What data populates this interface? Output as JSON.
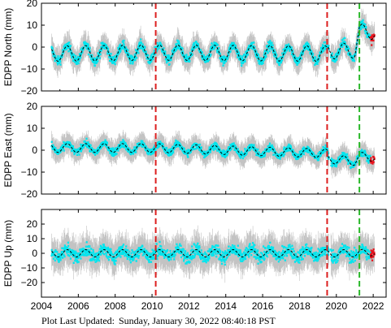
{
  "footer": {
    "updated_label": "Plot Last Updated:",
    "updated_value": "Sunday, January 30, 2022 08:40:18 PST"
  },
  "colors": {
    "uncertainty": "#b4b4b4",
    "data": "#00e5ee",
    "recent_data": "#e8141e",
    "model": "#000000",
    "offset_line": "#dc1e1e",
    "antenna_line": "#2ab82a"
  },
  "chart_data": [
    {
      "type": "scatter",
      "title": "",
      "ylabel": "EDPP North (mm)",
      "xlabel": "",
      "xlim": [
        2004,
        2022.7
      ],
      "ylim": [
        -20,
        20
      ],
      "yticks": [
        -20,
        -10,
        0,
        10,
        20
      ],
      "xticks": [
        2004,
        2006,
        2008,
        2010,
        2012,
        2014,
        2016,
        2018,
        2020,
        2022
      ],
      "show_xtick_labels": false,
      "grid": false,
      "series": [
        {
          "amplitude": 3.5,
          "trend": [
            [
              2004.5,
              -3
            ],
            [
              2010.2,
              -2.5
            ],
            [
              2019.5,
              -3
            ],
            [
              2019.55,
              -2
            ],
            [
              2021.0,
              -1.5
            ],
            [
              2021.25,
              7
            ],
            [
              2022.1,
              7
            ]
          ],
          "scatter": 3.2,
          "errbar": 4.5
        }
      ],
      "vlines": [
        {
          "x": 2010.2,
          "kind": "offset"
        },
        {
          "x": 2019.5,
          "kind": "offset"
        },
        {
          "x": 2021.25,
          "kind": "antenna"
        }
      ]
    },
    {
      "type": "scatter",
      "title": "",
      "ylabel": "EDPP East (mm)",
      "xlabel": "",
      "xlim": [
        2004,
        2022.7
      ],
      "ylim": [
        -20,
        20
      ],
      "yticks": [
        -20,
        -10,
        0,
        10,
        20
      ],
      "xticks": [
        2004,
        2006,
        2008,
        2010,
        2012,
        2014,
        2016,
        2018,
        2020,
        2022
      ],
      "show_xtick_labels": false,
      "grid": false,
      "series": [
        {
          "amplitude": 2.0,
          "trend": [
            [
              2004.5,
              1
            ],
            [
              2010.2,
              1
            ],
            [
              2019.5,
              -1.5
            ],
            [
              2019.55,
              -4
            ],
            [
              2021.0,
              -5
            ],
            [
              2021.25,
              -3
            ],
            [
              2022.1,
              -3
            ]
          ],
          "scatter": 2.5,
          "errbar": 4.0
        }
      ],
      "vlines": [
        {
          "x": 2010.2,
          "kind": "offset"
        },
        {
          "x": 2019.5,
          "kind": "offset"
        },
        {
          "x": 2021.25,
          "kind": "antenna"
        }
      ]
    },
    {
      "type": "scatter",
      "title": "",
      "ylabel": "EDPP Up (mm)",
      "xlabel": "",
      "xlim": [
        2004,
        2022.7
      ],
      "ylim": [
        -30,
        30
      ],
      "yticks": [
        -20,
        -10,
        0,
        10,
        20
      ],
      "xticks": [
        2004,
        2006,
        2008,
        2010,
        2012,
        2014,
        2016,
        2018,
        2020,
        2022
      ],
      "xtick_labels": [
        "2004",
        "2006",
        "2008",
        "2010",
        "2012",
        "2014",
        "2016",
        "2018",
        "2020",
        "2022"
      ],
      "show_xtick_labels": true,
      "grid": false,
      "series": [
        {
          "amplitude": 2.5,
          "trend": [
            [
              2004.5,
              0
            ],
            [
              2010.2,
              0
            ],
            [
              2019.5,
              0
            ],
            [
              2021.25,
              0
            ],
            [
              2022.1,
              1
            ]
          ],
          "scatter": 7,
          "errbar": 9
        }
      ],
      "vlines": [
        {
          "x": 2010.2,
          "kind": "offset"
        },
        {
          "x": 2019.5,
          "kind": "offset"
        },
        {
          "x": 2021.25,
          "kind": "antenna"
        }
      ]
    }
  ]
}
